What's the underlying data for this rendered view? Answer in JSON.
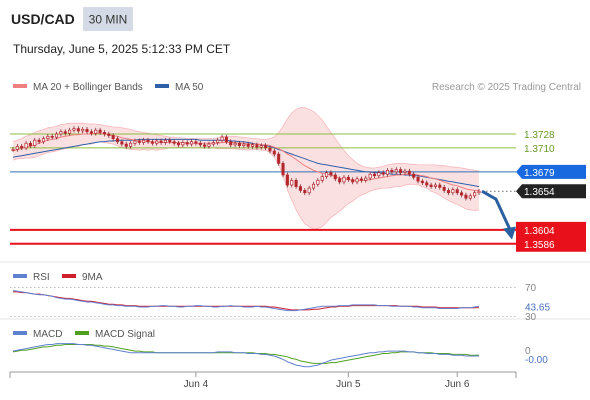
{
  "header": {
    "symbol": "USD/CAD",
    "timeframe": "30 MIN",
    "datetime": "Thursday, June 5, 2025 5:12:33 PM CET"
  },
  "colors": {
    "candle_up": "#b5262d",
    "candle_down": "#b5262d",
    "ma50": "#3060a8",
    "bollinger": "#f08080",
    "bollinger_fill": "#fbe0e2",
    "support_red": "#e8101a",
    "target_blue": "#1868e0",
    "level_green": "#8cbf3f",
    "arrow": "#2a5fa0",
    "rsi": "#6080d0",
    "rsi_ma": "#d02030",
    "macd": "#6080d0",
    "macd_signal": "#50a020"
  },
  "legend": {
    "ma_boll": "MA 20 + Bollinger Bands",
    "ma50": "MA 50",
    "credit": "Research © 2025 Trading Central"
  },
  "chart_data": {
    "type": "line",
    "ylim": [
      1.3565,
      1.3772
    ],
    "levels": [
      {
        "value": 1.3728,
        "label": "1.3728",
        "style": "green"
      },
      {
        "value": 1.371,
        "label": "1.3710",
        "style": "green"
      },
      {
        "value": 1.3679,
        "label": "1.3679",
        "style": "blue"
      },
      {
        "value": 1.3654,
        "label": "1.3654",
        "style": "current"
      },
      {
        "value": 1.3604,
        "label": "1.3604",
        "style": "red"
      },
      {
        "value": 1.3586,
        "label": "1.3586",
        "style": "red"
      }
    ],
    "x_labels": [
      "Jun 4",
      "Jun 5",
      "Jun 6"
    ],
    "close": [
      1.3708,
      1.3712,
      1.371,
      1.3716,
      1.3713,
      1.372,
      1.3718,
      1.3722,
      1.3725,
      1.3724,
      1.3728,
      1.3731,
      1.3729,
      1.3733,
      1.3735,
      1.3732,
      1.3734,
      1.3731,
      1.3729,
      1.3733,
      1.373,
      1.3728,
      1.3726,
      1.3722,
      1.3718,
      1.3715,
      1.3712,
      1.3716,
      1.3719,
      1.3717,
      1.372,
      1.3718,
      1.3716,
      1.3719,
      1.3717,
      1.372,
      1.3718,
      1.3716,
      1.3714,
      1.3717,
      1.3715,
      1.3718,
      1.3716,
      1.3714,
      1.3712,
      1.3715,
      1.3717,
      1.372,
      1.3724,
      1.3718,
      1.3714,
      1.3716,
      1.3713,
      1.3715,
      1.3712,
      1.3714,
      1.3711,
      1.3713,
      1.371,
      1.3706,
      1.3702,
      1.369,
      1.3675,
      1.3662,
      1.3668,
      1.366,
      1.3655,
      1.3652,
      1.3658,
      1.3663,
      1.3668,
      1.3673,
      1.3678,
      1.3675,
      1.367,
      1.3666,
      1.3672,
      1.3669,
      1.3666,
      1.367,
      1.3668,
      1.3671,
      1.3676,
      1.3674,
      1.3678,
      1.3676,
      1.3681,
      1.3679,
      1.3682,
      1.3678,
      1.368,
      1.3676,
      1.3672,
      1.3667,
      1.3665,
      1.3662,
      1.366,
      1.3662,
      1.3659,
      1.3655,
      1.3652,
      1.3656,
      1.3652,
      1.3649,
      1.3645,
      1.3648,
      1.3652,
      1.3654
    ],
    "ma20": [
      1.3706,
      1.3708,
      1.3709,
      1.3711,
      1.3712,
      1.3714,
      1.3716,
      1.3718,
      1.372,
      1.3721,
      1.3722,
      1.3724,
      1.3725,
      1.3726,
      1.3727,
      1.3727,
      1.3728,
      1.3728,
      1.3728,
      1.3729,
      1.3729,
      1.3728,
      1.3727,
      1.3726,
      1.3725,
      1.3723,
      1.3722,
      1.3721,
      1.372,
      1.3719,
      1.3719,
      1.3718,
      1.3718,
      1.3717,
      1.3717,
      1.3717,
      1.3717,
      1.3717,
      1.3717,
      1.3717,
      1.3716,
      1.3716,
      1.3716,
      1.3716,
      1.3716,
      1.3716,
      1.3716,
      1.3716,
      1.3717,
      1.3717,
      1.3717,
      1.3717,
      1.3716,
      1.3716,
      1.3715,
      1.3715,
      1.3715,
      1.3714,
      1.3714,
      1.3713,
      1.3711,
      1.3709,
      1.3706,
      1.3702,
      1.3699,
      1.3695,
      1.3691,
      1.3687,
      1.3684,
      1.3681,
      1.3679,
      1.3677,
      1.3676,
      1.3675,
      1.3673,
      1.3671,
      1.367,
      1.3669,
      1.3668,
      1.3668,
      1.3668,
      1.3668,
      1.3669,
      1.367,
      1.3671,
      1.3672,
      1.3673,
      1.3674,
      1.3675,
      1.3675,
      1.3676,
      1.3676,
      1.3676,
      1.3675,
      1.3674,
      1.3673,
      1.3671,
      1.367,
      1.3668,
      1.3666,
      1.3664,
      1.3662,
      1.3661,
      1.3659,
      1.3657,
      1.3656,
      1.3655,
      1.3655
    ],
    "bb_upper": [
      1.3718,
      1.372,
      1.3722,
      1.3725,
      1.3727,
      1.373,
      1.3732,
      1.3734,
      1.3736,
      1.3737,
      1.3738,
      1.374,
      1.3741,
      1.3742,
      1.3742,
      1.3742,
      1.3742,
      1.3741,
      1.3741,
      1.3741,
      1.374,
      1.3739,
      1.3738,
      1.3737,
      1.3737,
      1.3736,
      1.3735,
      1.3734,
      1.3732,
      1.3731,
      1.373,
      1.3729,
      1.3728,
      1.3727,
      1.3726,
      1.3725,
      1.3724,
      1.3724,
      1.3723,
      1.3723,
      1.3722,
      1.3722,
      1.3722,
      1.3722,
      1.3722,
      1.3722,
      1.3722,
      1.3723,
      1.3725,
      1.3725,
      1.3725,
      1.3725,
      1.3724,
      1.3724,
      1.3723,
      1.3722,
      1.3722,
      1.3721,
      1.3721,
      1.3722,
      1.3724,
      1.373,
      1.3738,
      1.3748,
      1.3755,
      1.376,
      1.3762,
      1.3762,
      1.376,
      1.3757,
      1.3752,
      1.3746,
      1.3738,
      1.373,
      1.3722,
      1.3714,
      1.3707,
      1.37,
      1.3695,
      1.369,
      1.3687,
      1.3685,
      1.3684,
      1.3684,
      1.3685,
      1.3686,
      1.3688,
      1.3689,
      1.369,
      1.369,
      1.369,
      1.3689,
      1.3689,
      1.3688,
      1.3688,
      1.3688,
      1.3688,
      1.3688,
      1.3687,
      1.3687,
      1.3686,
      1.3685,
      1.3685,
      1.3684,
      1.3683,
      1.3682,
      1.3681,
      1.368
    ],
    "bb_lower": [
      1.3694,
      1.3696,
      1.3696,
      1.3697,
      1.3697,
      1.3698,
      1.37,
      1.3702,
      1.3704,
      1.3705,
      1.3706,
      1.3708,
      1.3709,
      1.371,
      1.3712,
      1.3712,
      1.3714,
      1.3715,
      1.3715,
      1.3717,
      1.3718,
      1.3717,
      1.3716,
      1.3715,
      1.3713,
      1.371,
      1.3709,
      1.3708,
      1.3708,
      1.3707,
      1.3708,
      1.3707,
      1.3708,
      1.3707,
      1.3708,
      1.3709,
      1.371,
      1.371,
      1.3711,
      1.3711,
      1.371,
      1.371,
      1.371,
      1.371,
      1.371,
      1.371,
      1.371,
      1.3709,
      1.3709,
      1.3709,
      1.3709,
      1.3709,
      1.3708,
      1.3708,
      1.3707,
      1.3708,
      1.3708,
      1.3707,
      1.3707,
      1.3704,
      1.3698,
      1.3688,
      1.3674,
      1.3656,
      1.3643,
      1.363,
      1.362,
      1.3612,
      1.3608,
      1.3605,
      1.3606,
      1.3608,
      1.3614,
      1.362,
      1.3624,
      1.3628,
      1.3633,
      1.3638,
      1.3641,
      1.3646,
      1.3649,
      1.3651,
      1.3654,
      1.3656,
      1.3657,
      1.3658,
      1.3658,
      1.3659,
      1.366,
      1.366,
      1.3662,
      1.3663,
      1.3663,
      1.3662,
      1.366,
      1.3658,
      1.3654,
      1.3652,
      1.3649,
      1.3645,
      1.3642,
      1.3639,
      1.3637,
      1.3634,
      1.3631,
      1.363,
      1.3629,
      1.363
    ],
    "ma50": [
      1.3698,
      1.3699,
      1.37,
      1.3701,
      1.3702,
      1.3703,
      1.3704,
      1.3705,
      1.3706,
      1.3707,
      1.3708,
      1.3709,
      1.371,
      1.3711,
      1.3712,
      1.3713,
      1.3714,
      1.3715,
      1.3716,
      1.3717,
      1.3718,
      1.3718,
      1.3719,
      1.3719,
      1.372,
      1.372,
      1.372,
      1.372,
      1.372,
      1.3721,
      1.3721,
      1.3721,
      1.3721,
      1.3721,
      1.3721,
      1.3721,
      1.3721,
      1.3721,
      1.3721,
      1.3721,
      1.3721,
      1.3721,
      1.3721,
      1.372,
      1.372,
      1.372,
      1.372,
      1.372,
      1.372,
      1.372,
      1.3719,
      1.3719,
      1.3718,
      1.3718,
      1.3717,
      1.3716,
      1.3715,
      1.3714,
      1.3713,
      1.3712,
      1.371,
      1.3708,
      1.3706,
      1.3704,
      1.3702,
      1.37,
      1.3698,
      1.3696,
      1.3694,
      1.3692,
      1.369,
      1.3689,
      1.3688,
      1.3687,
      1.3686,
      1.3685,
      1.3684,
      1.3683,
      1.3682,
      1.3681,
      1.368,
      1.3679,
      1.3679,
      1.3678,
      1.3678,
      1.3677,
      1.3677,
      1.3676,
      1.3676,
      1.3676,
      1.3675,
      1.3675,
      1.3674,
      1.3674,
      1.3673,
      1.3672,
      1.3671,
      1.367,
      1.3669,
      1.3668,
      1.3667,
      1.3666,
      1.3665,
      1.3664,
      1.3663,
      1.3662,
      1.3661,
      1.366
    ],
    "rsi": {
      "levels": [
        {
          "value": 70,
          "label": "70"
        },
        {
          "value": 30,
          "label": "30"
        }
      ],
      "current": 43.65,
      "current_label": "43.65",
      "legend": [
        "RSI",
        "9MA"
      ],
      "ylim": [
        25,
        75
      ],
      "values": [
        66,
        65,
        64,
        63,
        62,
        61,
        60,
        60,
        59,
        58,
        56,
        55,
        54,
        54,
        53,
        52,
        51,
        50,
        50,
        49,
        48,
        47,
        46,
        46,
        45,
        45,
        44,
        44,
        44,
        43,
        43,
        43,
        44,
        44,
        45,
        45,
        44,
        44,
        43,
        43,
        44,
        44,
        45,
        45,
        44,
        44,
        43,
        43,
        44,
        44,
        45,
        44,
        44,
        43,
        43,
        43,
        44,
        43,
        43,
        42,
        41,
        40,
        39,
        38,
        38,
        38,
        39,
        40,
        41,
        42,
        43,
        44,
        44,
        44,
        44,
        45,
        45,
        45,
        46,
        46,
        46,
        46,
        46,
        46,
        45,
        45,
        45,
        44,
        44,
        44,
        44,
        44,
        43,
        43,
        42,
        42,
        42,
        42,
        41,
        41,
        41,
        41,
        41,
        42,
        42,
        42,
        43,
        44
      ],
      "ma_values": [
        64,
        64,
        63,
        63,
        62,
        61,
        61,
        60,
        59,
        58,
        57,
        56,
        55,
        55,
        54,
        53,
        52,
        51,
        51,
        50,
        49,
        48,
        47,
        47,
        46,
        46,
        45,
        45,
        45,
        44,
        44,
        44,
        44,
        44,
        44,
        44,
        44,
        44,
        44,
        44,
        44,
        44,
        44,
        44,
        44,
        44,
        44,
        44,
        44,
        44,
        44,
        44,
        44,
        44,
        44,
        44,
        44,
        44,
        44,
        43,
        43,
        42,
        41,
        40,
        39,
        39,
        39,
        39,
        39,
        40,
        40,
        41,
        42,
        43,
        43,
        44,
        44,
        44,
        45,
        45,
        45,
        45,
        45,
        45,
        45,
        45,
        45,
        45,
        45,
        44,
        44,
        44,
        44,
        44,
        43,
        43,
        43,
        43,
        42,
        42,
        42,
        42,
        42,
        42,
        42,
        42,
        42,
        42
      ]
    },
    "macd": {
      "zero_label": "0",
      "current_label": "-0.00",
      "legend": [
        "MACD",
        "MACD Signal"
      ],
      "ylim": [
        -0.0022,
        0.0012
      ],
      "values": [
        0.0001,
        0.0002,
        0.0003,
        0.0004,
        0.0005,
        0.0006,
        0.0007,
        0.0008,
        0.0009,
        0.0009,
        0.001,
        0.001,
        0.001,
        0.001,
        0.001,
        0.0009,
        0.0009,
        0.0008,
        0.0008,
        0.0007,
        0.0006,
        0.0005,
        0.0004,
        0.0003,
        0.0002,
        0.0001,
        0.0,
        -0.0001,
        -0.0001,
        -0.0001,
        -0.0001,
        -0.0001,
        -0.0001,
        -0.0001,
        -0.0001,
        -0.0001,
        -0.0001,
        -0.0001,
        -0.0001,
        -0.0001,
        -0.0001,
        -0.0001,
        -0.0001,
        -0.0001,
        -0.0001,
        -0.0001,
        -0.0001,
        0.0,
        0.0,
        0.0,
        0.0,
        -0.0001,
        -0.0001,
        -0.0001,
        -0.0002,
        -0.0002,
        -0.0002,
        -0.0003,
        -0.0003,
        -0.0004,
        -0.0005,
        -0.0007,
        -0.0009,
        -0.0012,
        -0.0014,
        -0.0016,
        -0.0017,
        -0.0018,
        -0.0018,
        -0.0017,
        -0.0016,
        -0.0014,
        -0.0012,
        -0.001,
        -0.0009,
        -0.0008,
        -0.0007,
        -0.0006,
        -0.0005,
        -0.0004,
        -0.0003,
        -0.0002,
        -0.0001,
        -0.0001,
        0.0,
        0.0,
        0.0001,
        0.0001,
        0.0001,
        0.0001,
        0.0001,
        0.0,
        0.0,
        -0.0001,
        -0.0001,
        -0.0002,
        -0.0002,
        -0.0002,
        -0.0003,
        -0.0003,
        -0.0003,
        -0.0004,
        -0.0004,
        -0.0004,
        -0.0005,
        -0.0005,
        -0.0005,
        -0.0005
      ],
      "signal": [
        0.0,
        0.0001,
        0.0002,
        0.0002,
        0.0003,
        0.0004,
        0.0005,
        0.0006,
        0.0006,
        0.0007,
        0.0008,
        0.0008,
        0.0009,
        0.0009,
        0.0009,
        0.0009,
        0.0009,
        0.0009,
        0.0009,
        0.0008,
        0.0008,
        0.0007,
        0.0007,
        0.0006,
        0.0005,
        0.0004,
        0.0003,
        0.0002,
        0.0001,
        0.0001,
        0.0,
        0.0,
        0.0,
        -0.0001,
        -0.0001,
        -0.0001,
        -0.0001,
        -0.0001,
        -0.0001,
        -0.0001,
        -0.0001,
        -0.0001,
        -0.0001,
        -0.0001,
        -0.0001,
        -0.0001,
        -0.0001,
        -0.0001,
        -0.0001,
        -0.0001,
        -0.0001,
        -0.0001,
        -0.0001,
        -0.0001,
        -0.0001,
        -0.0001,
        -0.0002,
        -0.0002,
        -0.0002,
        -0.0003,
        -0.0003,
        -0.0004,
        -0.0005,
        -0.0006,
        -0.0008,
        -0.0009,
        -0.0011,
        -0.0012,
        -0.0013,
        -0.0014,
        -0.0014,
        -0.0014,
        -0.0014,
        -0.0013,
        -0.0013,
        -0.0012,
        -0.0011,
        -0.001,
        -0.0009,
        -0.0008,
        -0.0007,
        -0.0006,
        -0.0005,
        -0.0004,
        -0.0003,
        -0.0002,
        -0.0002,
        -0.0001,
        -0.0001,
        0.0,
        0.0,
        0.0,
        0.0,
        -0.0001,
        -0.0001,
        -0.0001,
        -0.0001,
        -0.0002,
        -0.0002,
        -0.0002,
        -0.0002,
        -0.0003,
        -0.0003,
        -0.0003,
        -0.0003,
        -0.0004,
        -0.0004,
        -0.0004
      ]
    }
  }
}
